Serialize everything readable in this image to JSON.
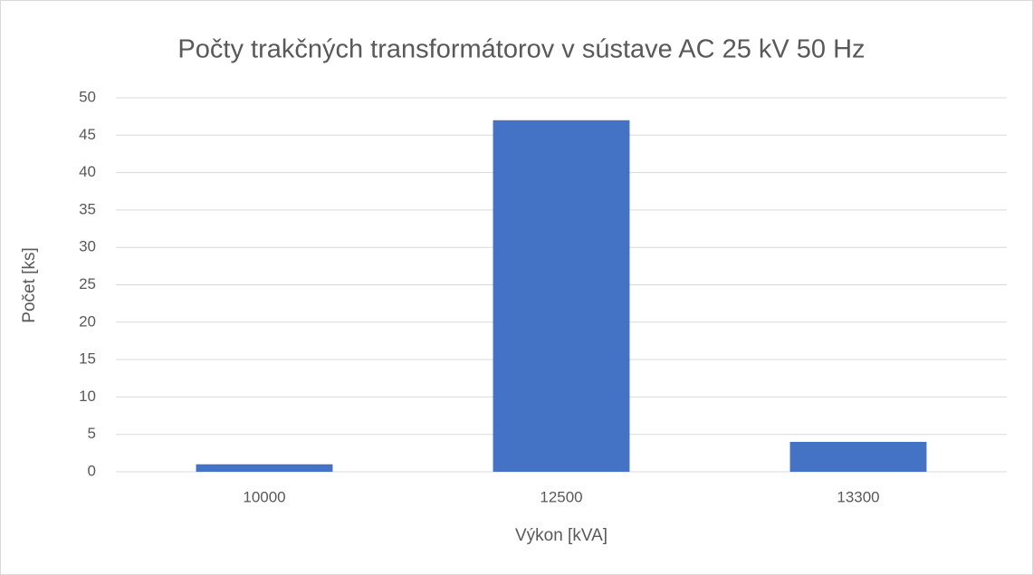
{
  "chart_data": {
    "type": "bar",
    "title": "Počty trakčných transformátorov v sústave AC 25 kV 50 Hz",
    "x_label": "Výkon [kVA]",
    "y_label": "Počet [ks]",
    "categories": [
      "10000",
      "12500",
      "13300"
    ],
    "values": [
      1,
      47,
      4
    ],
    "color": "#4472c4",
    "ylim": [
      0,
      50
    ],
    "yticks": [
      0,
      5,
      10,
      15,
      20,
      25,
      30,
      35,
      40,
      45,
      50
    ],
    "grid": true
  }
}
